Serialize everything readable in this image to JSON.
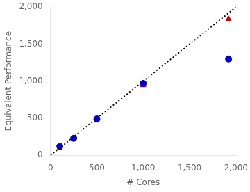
{
  "chart_data": {
    "type": "scatter",
    "x_label": "# Cores",
    "y_label": "Equivalent Performance",
    "series": [
      {
        "type": "line",
        "line_style": "dotted",
        "color": "black",
        "x": [
          0,
          2000
        ],
        "values": [
          0,
          2000
        ]
      },
      {
        "color": "#0000cc",
        "marker": "circle",
        "x": [
          100,
          250,
          500,
          1000,
          1920
        ],
        "values": [
          120,
          230,
          490,
          970,
          1300
        ]
      },
      {
        "color": "#cc0000",
        "marker": "triangle",
        "x": [
          100,
          250,
          500,
          1000,
          1920
        ],
        "values": [
          105,
          218,
          468,
          945,
          1840
        ]
      }
    ],
    "xlim": [
      0,
      2000
    ],
    "ylim": [
      0,
      2000
    ],
    "xticks": [
      0,
      500,
      1000,
      1500,
      2000
    ],
    "yticks": [
      0,
      500,
      1000,
      1500,
      2000
    ],
    "grid": false
  }
}
